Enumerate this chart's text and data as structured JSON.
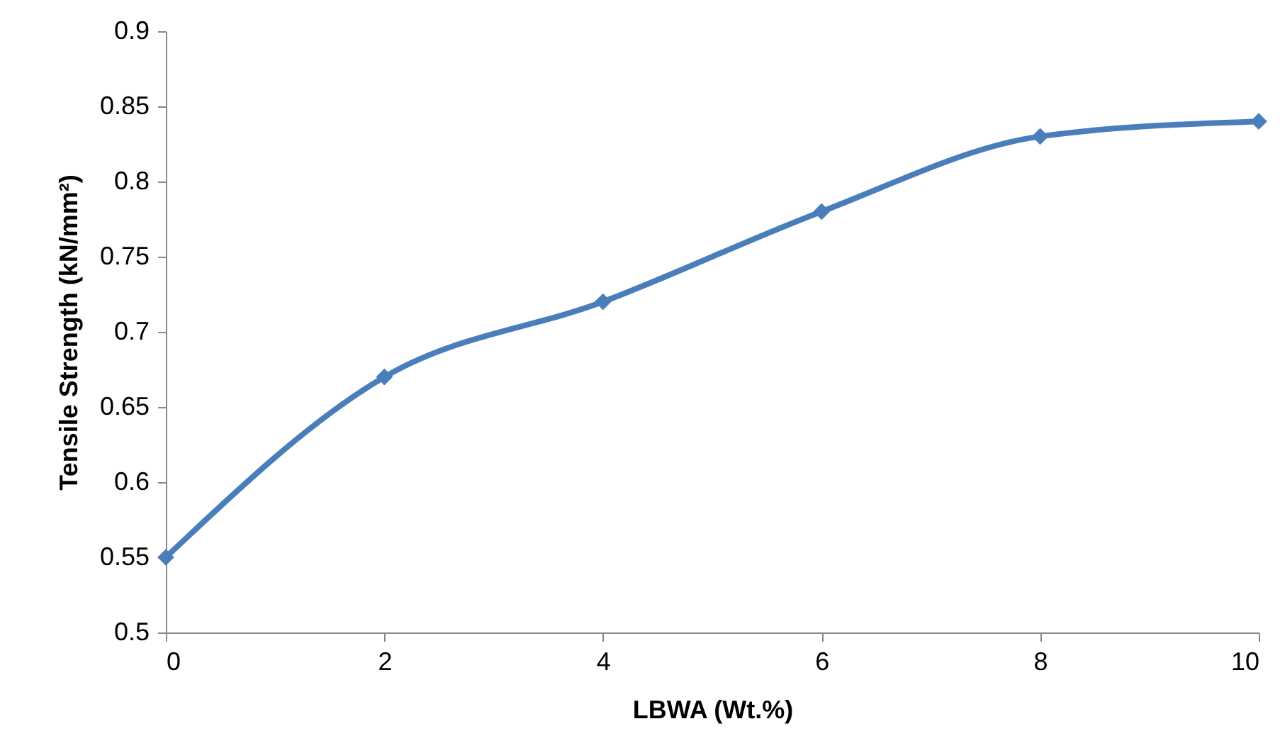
{
  "chart_data": {
    "type": "line",
    "xlabel": "LBWA (Wt.%)",
    "ylabel": "Tensile Strength (kN/mm²)",
    "x": [
      0,
      2,
      4,
      6,
      8,
      10
    ],
    "series": [
      {
        "color": "#4a7ebb",
        "values": [
          0.55,
          0.67,
          0.72,
          0.78,
          0.83,
          0.84
        ]
      }
    ],
    "xlim": [
      0,
      10
    ],
    "xticks": [
      0,
      2,
      4,
      6,
      8,
      10
    ],
    "ylim": [
      0.5,
      0.9
    ],
    "yticks": [
      0.5,
      0.55,
      0.6,
      0.65,
      0.7,
      0.75,
      0.8,
      0.85,
      0.9
    ],
    "marker": "diamond",
    "line_style": "solid",
    "grid": false
  }
}
